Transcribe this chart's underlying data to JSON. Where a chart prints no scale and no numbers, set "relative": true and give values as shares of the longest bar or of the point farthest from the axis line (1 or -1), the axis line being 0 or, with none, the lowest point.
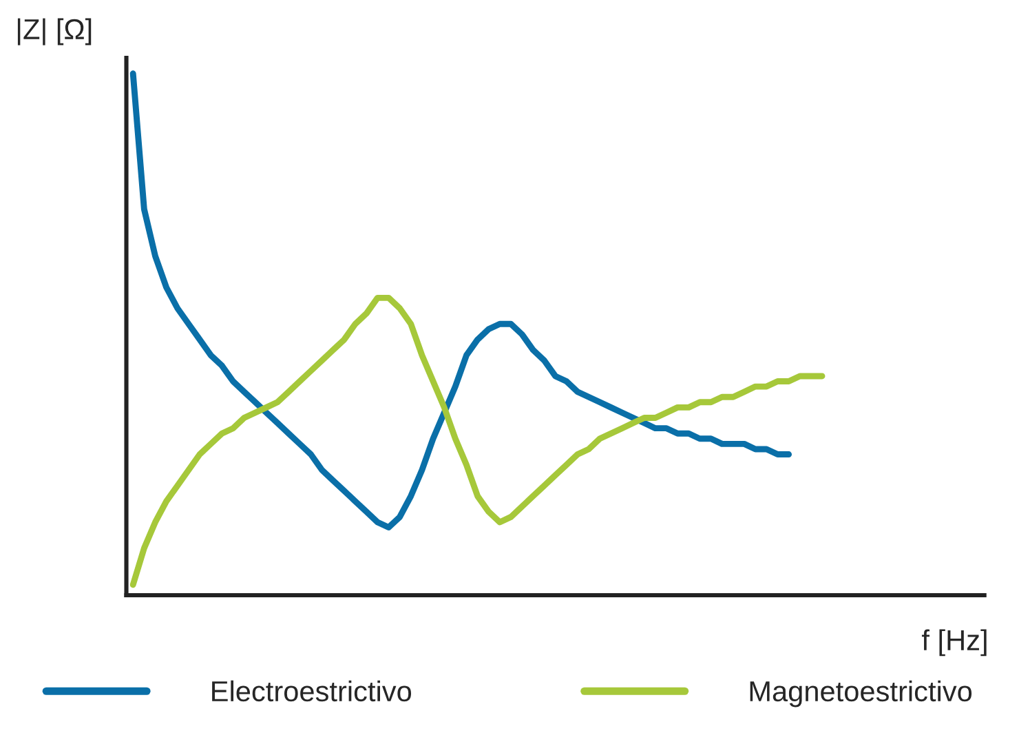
{
  "chart_data": {
    "type": "line",
    "relative": true,
    "ylabel": "|Z| [Ω]",
    "xlabel": "f [Hz]",
    "legend": "bottom",
    "grid": false,
    "marker": "none",
    "line_style": "solid",
    "categories": [
      null,
      null,
      null,
      null,
      null,
      null,
      null,
      null,
      null,
      null,
      null,
      null,
      null,
      null,
      null,
      null,
      null,
      null,
      null,
      null,
      null,
      null,
      null,
      null,
      null,
      null,
      null,
      null,
      null,
      null,
      null,
      null,
      null,
      null,
      null,
      null,
      null,
      null,
      null,
      null,
      null,
      null,
      null,
      null,
      null,
      null,
      null,
      null,
      null,
      null,
      null,
      null,
      null,
      null,
      null,
      null,
      null,
      null,
      null,
      null,
      null,
      null,
      null
    ],
    "series": [
      {
        "name": "Electroestrictivo",
        "color": "#0a6fa8",
        "values": [
          1.0,
          0.74,
          0.65,
          0.59,
          0.55,
          0.52,
          0.49,
          0.46,
          0.44,
          0.41,
          0.39,
          0.37,
          0.35,
          0.33,
          0.31,
          0.29,
          0.27,
          0.24,
          0.22,
          0.2,
          0.18,
          0.16,
          0.14,
          0.13,
          0.15,
          0.19,
          0.24,
          0.3,
          0.35,
          0.4,
          0.46,
          0.49,
          0.51,
          0.52,
          0.52,
          0.5,
          0.47,
          0.45,
          0.42,
          0.41,
          0.39,
          0.38,
          0.37,
          0.36,
          0.35,
          0.34,
          0.33,
          0.32,
          0.32,
          0.31,
          0.31,
          0.3,
          0.3,
          0.29,
          0.29,
          0.29,
          0.28,
          0.28,
          0.27,
          0.27,
          null,
          null,
          null
        ]
      },
      {
        "name": "Magnetoestrictivo",
        "color": "#a6c83a",
        "values": [
          0.02,
          0.09,
          0.14,
          0.18,
          0.21,
          0.24,
          0.27,
          0.29,
          0.31,
          0.32,
          0.34,
          0.35,
          0.36,
          0.37,
          0.39,
          0.41,
          0.43,
          0.45,
          0.47,
          0.49,
          0.52,
          0.54,
          0.57,
          0.57,
          0.55,
          0.52,
          0.46,
          0.41,
          0.36,
          0.3,
          0.25,
          0.19,
          0.16,
          0.14,
          0.15,
          0.17,
          0.19,
          0.21,
          0.23,
          0.25,
          0.27,
          0.28,
          0.3,
          0.31,
          0.32,
          0.33,
          0.34,
          0.34,
          0.35,
          0.36,
          0.36,
          0.37,
          0.37,
          0.38,
          0.38,
          0.39,
          0.4,
          0.4,
          0.41,
          0.41,
          0.42,
          0.42,
          0.42
        ]
      }
    ]
  }
}
